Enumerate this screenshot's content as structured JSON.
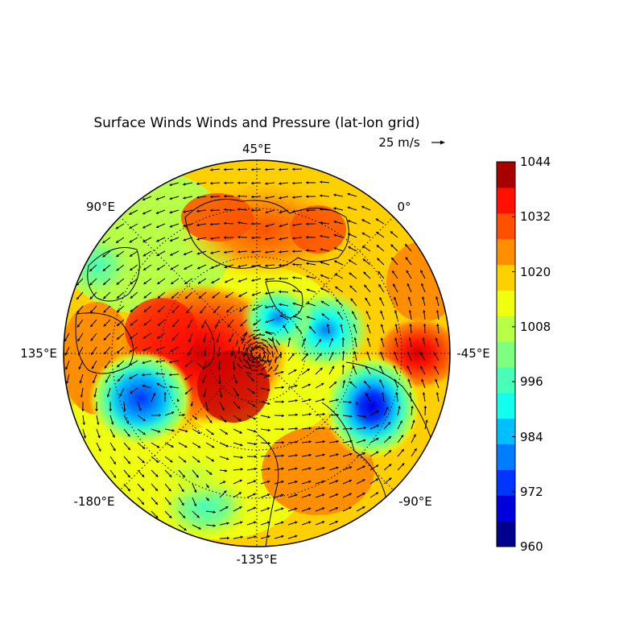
{
  "title": "Surface Winds Winds and Pressure (lat-lon grid)",
  "quiver_key": {
    "label": "25 m/s"
  },
  "longitude_labels": [
    "45°E",
    "0°",
    "-45°E",
    "-90°E",
    "-135°E",
    "-180°E",
    "135°E",
    "90°E"
  ],
  "colorbar": {
    "tick_labels": [
      "1044",
      "1032",
      "1020",
      "1008",
      "996",
      "984",
      "972",
      "960"
    ],
    "levels": [
      960,
      966,
      972,
      978,
      984,
      990,
      996,
      1002,
      1008,
      1014,
      1020,
      1026,
      1032,
      1038,
      1044
    ],
    "colors": [
      "#00008f",
      "#0000dd",
      "#0035ff",
      "#007cff",
      "#00bfff",
      "#12fff0",
      "#47ffb8",
      "#7fff80",
      "#b8ff47",
      "#f0ff0f",
      "#ffd000",
      "#ff8f00",
      "#ff5000",
      "#ff1000",
      "#a80000"
    ]
  },
  "map": {
    "projection": "north polar stereographic",
    "variable": "surface pressure and wind vectors",
    "pressure_features": [
      {
        "type": "high",
        "region": "Siberia / East Asia",
        "pressure": 1036
      },
      {
        "type": "high",
        "region": "Europe",
        "pressure": 1030
      },
      {
        "type": "high",
        "region": "North Atlantic near -45°E",
        "pressure": 1034
      },
      {
        "type": "low",
        "region": "North Pacific (Aleutian)",
        "pressure": 970
      },
      {
        "type": "low",
        "region": "Labrador / North Atlantic",
        "pressure": 972
      },
      {
        "type": "low",
        "region": "Greenland-Iceland",
        "pressure": 985
      },
      {
        "type": "low",
        "region": "Barents Sea",
        "pressure": 988
      },
      {
        "type": "low",
        "region": "Eastern North Pacific",
        "pressure": 998
      }
    ]
  }
}
